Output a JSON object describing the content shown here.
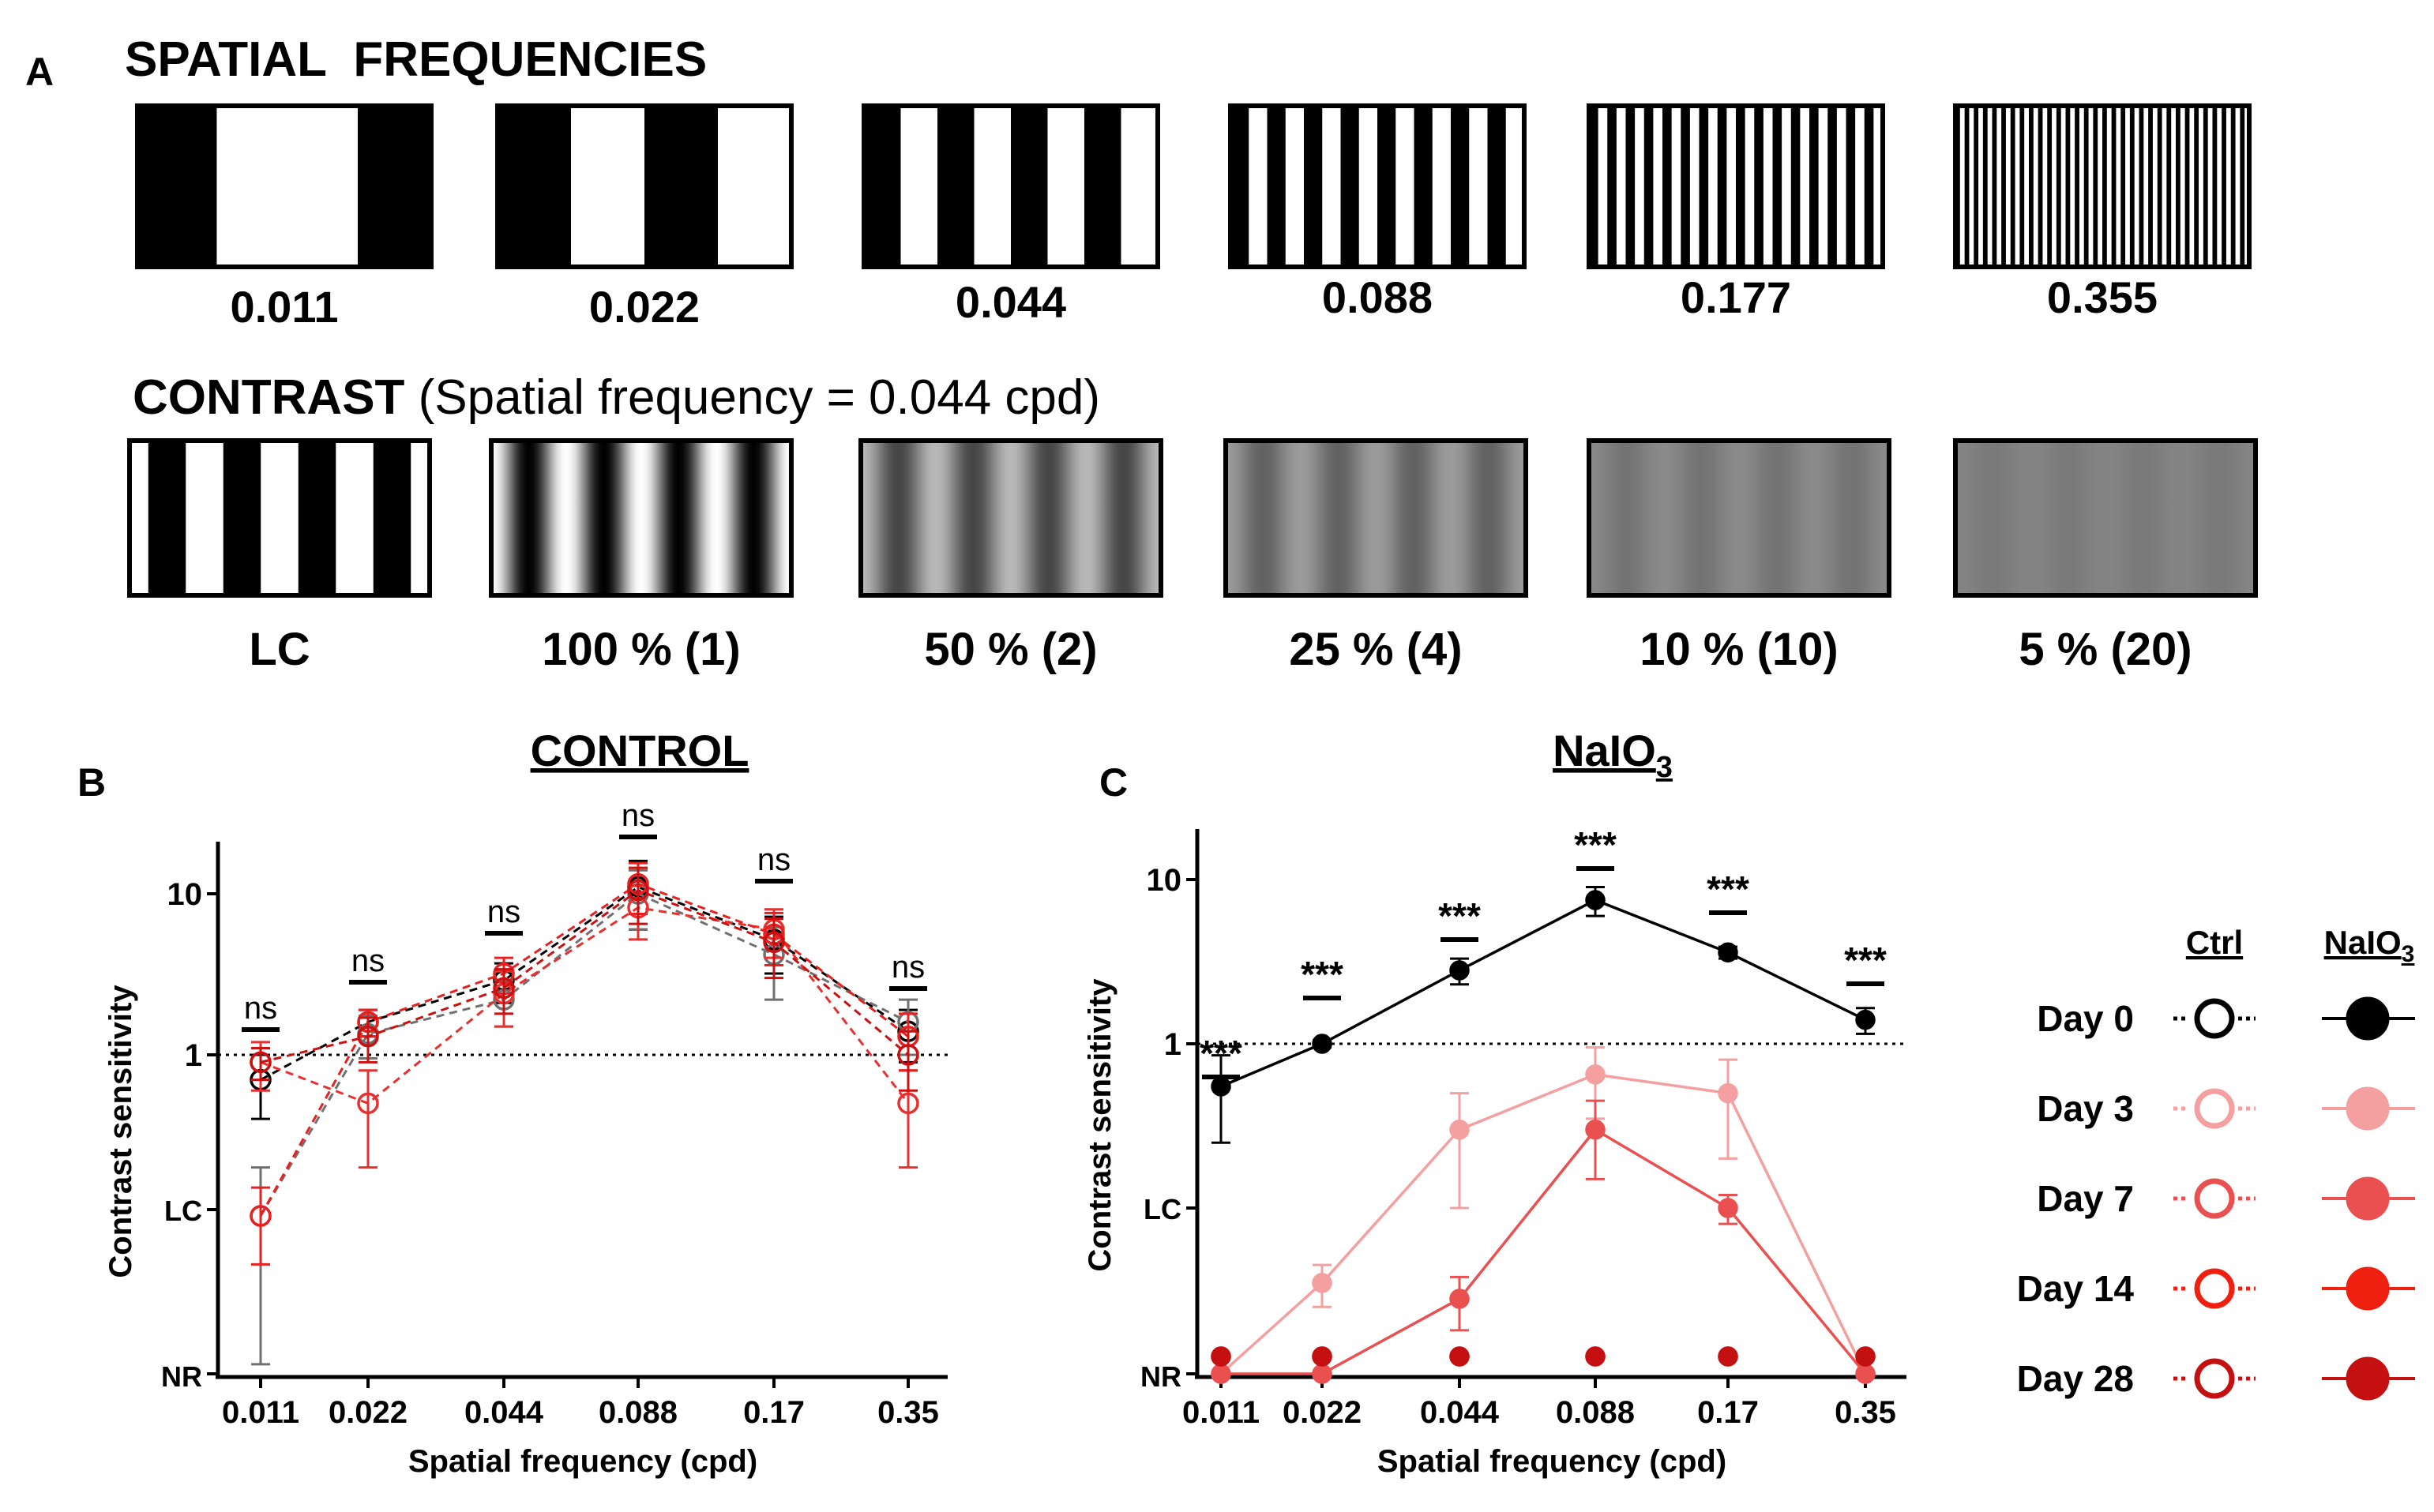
{
  "panel_a": {
    "label": "A",
    "spatial_title": "SPATIAL  FREQUENCIES",
    "spatial_gratings": [
      {
        "label": "0.011",
        "cycles": 1
      },
      {
        "label": "0.022",
        "cycles": 2
      },
      {
        "label": "0.044",
        "cycles": 4
      },
      {
        "label": "0.088",
        "cycles": 8
      },
      {
        "label": "0.177",
        "cycles": 16
      },
      {
        "label": "0.355",
        "cycles": 32
      }
    ],
    "contrast_title_bold": "CONTRAST",
    "contrast_title_rest": " (Spatial frequency = 0.044 cpd)",
    "contrast_gratings": [
      {
        "label": "LC",
        "contrast": 1.0,
        "square": true
      },
      {
        "label": "100 % (1)",
        "contrast": 1.0,
        "square": false
      },
      {
        "label": "50 % (2)",
        "contrast": 0.5,
        "square": false
      },
      {
        "label": "25 % (4)",
        "contrast": 0.25,
        "square": false
      },
      {
        "label": "10 % (10)",
        "contrast": 0.1,
        "square": false
      },
      {
        "label": "5 % (20)",
        "contrast": 0.05,
        "square": false
      }
    ]
  },
  "chart_data": [
    {
      "panel": "B",
      "type": "line",
      "title": "CONTROL",
      "xlabel": "Spatial frequency (cpd)",
      "ylabel": "Contrast sensitivity",
      "categories": [
        "0.011",
        "0.022",
        "0.044",
        "0.088",
        "0.17",
        "0.35"
      ],
      "y_ticks": [
        "10",
        "1",
        "LC",
        "NR"
      ],
      "reference_line": 1,
      "significance": [
        "ns",
        "ns",
        "ns",
        "ns",
        "ns",
        "ns"
      ],
      "series": [
        {
          "name": "Ctrl Day 0",
          "color": "#000000",
          "style": "open-dashed",
          "values": [
            0.7,
            1.6,
            2.9,
            11,
            5.2,
            1.4
          ],
          "err": [
            0.3,
            0.3,
            0.8,
            5,
            2,
            0.5
          ]
        },
        {
          "name": "Ctrl Day 3",
          "color": "#707070",
          "style": "open-dashed",
          "values": [
            0.1,
            1.35,
            2.2,
            10,
            4.2,
            1.6
          ],
          "err": [
            0.1,
            0.4,
            0.7,
            4,
            2,
            0.6
          ]
        },
        {
          "name": "Ctrl Day 7",
          "color": "#e83030",
          "style": "open-dashed",
          "values": [
            0.9,
            0.5,
            2.4,
            8.2,
            6,
            0.5
          ],
          "err": [
            0.3,
            0.3,
            0.9,
            3,
            2,
            0.3
          ]
        },
        {
          "name": "Ctrl Day 14",
          "color": "#e82020",
          "style": "open-dashed",
          "values": [
            0.1,
            1.6,
            3.2,
            11.5,
            5.6,
            1.3
          ],
          "err": [
            0.05,
            0.3,
            0.8,
            4,
            2,
            0.5
          ]
        },
        {
          "name": "Ctrl Day 28",
          "color": "#cc1010",
          "style": "open-dashed",
          "values": [
            0.9,
            1.3,
            2.6,
            10.5,
            5,
            1.0
          ],
          "err": [
            0.2,
            0.4,
            0.8,
            4,
            2,
            0.4
          ]
        }
      ]
    },
    {
      "panel": "C",
      "type": "line",
      "title": "NaIO",
      "title_sub": "3",
      "xlabel": "Spatial frequency (cpd)",
      "ylabel": "Contrast sensitivity",
      "categories": [
        "0.011",
        "0.022",
        "0.044",
        "0.088",
        "0.17",
        "0.35"
      ],
      "y_ticks": [
        "10",
        "1",
        "LC",
        "NR"
      ],
      "reference_line": 1,
      "significance": [
        "***",
        "***",
        "***",
        "***",
        "***",
        "***"
      ],
      "series": [
        {
          "name": "NaIO3 Day 0",
          "color": "#000000",
          "style": "filled-solid",
          "values": [
            0.55,
            1.0,
            2.8,
            7.5,
            3.6,
            1.4
          ],
          "err": [
            0.3,
            0.05,
            0.5,
            1.5,
            0.3,
            0.25
          ]
        },
        {
          "name": "NaIO3 Day 3",
          "color": "#f4a0a0",
          "style": "filled-solid",
          "values": "NR,0.035,0.3,0.65,0.5,NR",
          "err": [
            0,
            0.01,
            0.2,
            0.3,
            0.3,
            0
          ]
        },
        {
          "name": "NaIO3 Day 7",
          "color": "#ea5050",
          "style": "filled-solid",
          "values": "NR,NR,0.028,0.3,0.1,NR",
          "err": [
            0,
            0,
            0.01,
            0.15,
            0.02,
            0
          ]
        },
        {
          "name": "NaIO3 Day 14",
          "color": "#f02010",
          "style": "filled-solid",
          "values": "NR,NR,NR,NR,NR,NR"
        },
        {
          "name": "NaIO3 Day 28",
          "color": "#c41010",
          "style": "filled-solid",
          "values": "NR,NR,NR,NR,NR,NR"
        }
      ]
    }
  ],
  "legend": {
    "ctrl_header": "Ctrl",
    "naio_header": "NaIO",
    "naio_header_sub": "3",
    "rows": [
      {
        "label": "Day 0",
        "color": "#000000"
      },
      {
        "label": "Day 3",
        "color": "#f4a0a0"
      },
      {
        "label": "Day 7",
        "color": "#ea5050"
      },
      {
        "label": "Day 14",
        "color": "#f02010"
      },
      {
        "label": "Day 28",
        "color": "#c41010"
      }
    ]
  }
}
